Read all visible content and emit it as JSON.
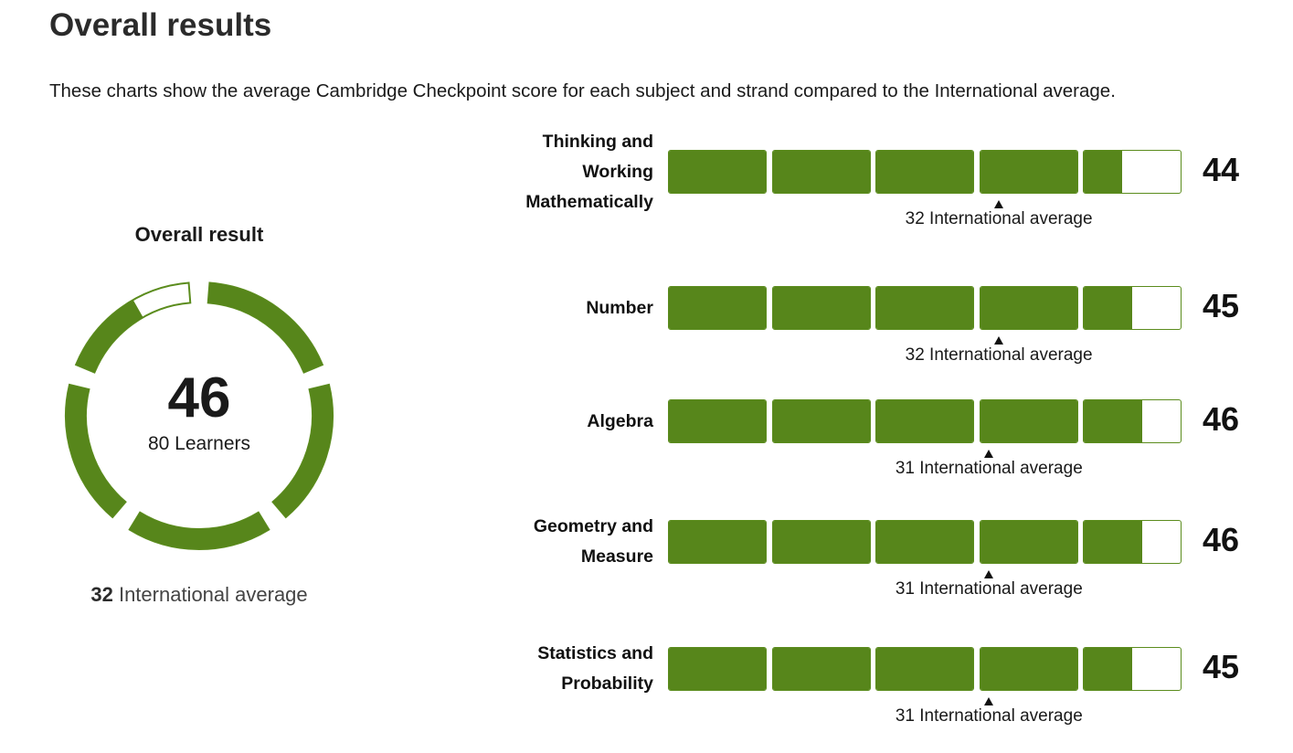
{
  "page": {
    "title": "Overall results",
    "intro": "These charts show the average Cambridge Checkpoint score for each subject and strand compared to the International average."
  },
  "overall": {
    "heading": "Overall result",
    "score": "46",
    "learners": "80 Learners",
    "intl_avg_value": "32",
    "intl_avg_label": "International average"
  },
  "colors": {
    "fill": "#57861b",
    "border": "#5b8c1d",
    "empty": "#ffffff"
  },
  "chart_data": [
    {
      "type": "donut",
      "title": "Overall result",
      "value": 46,
      "max": 50,
      "segments": 5,
      "international_average": 32
    },
    {
      "type": "bar",
      "max": 50,
      "segments": 5,
      "categories": [
        "Thinking and Working Mathematically",
        "Number",
        "Algebra",
        "Geometry and Measure",
        "Statistics and Probability"
      ],
      "values": [
        44,
        45,
        46,
        46,
        45
      ],
      "international_average": [
        32,
        32,
        31,
        31,
        31
      ]
    }
  ],
  "strands": [
    {
      "label_lines": [
        "Thinking and",
        "Working",
        "Mathematically"
      ],
      "score": "44",
      "avg_text": "32 International average"
    },
    {
      "label_lines": [
        "Number"
      ],
      "score": "45",
      "avg_text": "32 International average"
    },
    {
      "label_lines": [
        "Algebra"
      ],
      "score": "46",
      "avg_text": "31 International average"
    },
    {
      "label_lines": [
        "Geometry and",
        "Measure"
      ],
      "score": "46",
      "avg_text": "31 International average"
    },
    {
      "label_lines": [
        "Statistics and",
        "Probability"
      ],
      "score": "45",
      "avg_text": "31 International average"
    }
  ]
}
